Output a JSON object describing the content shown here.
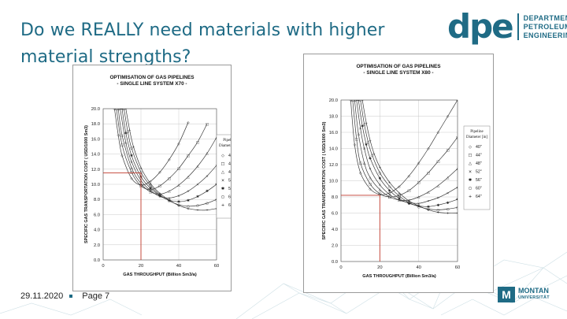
{
  "slide": {
    "title": "Do we REALLY need materials with higher material strengths?",
    "date": "29.11.2020",
    "page": "Page 7"
  },
  "logo": {
    "mark": "dpe",
    "line1": "DEPARTMENT",
    "line2": "PETROLEUM",
    "line3": "ENGINEERING"
  },
  "university_logo": {
    "mark": "M",
    "line1": "MONTAN",
    "line2": "UNIVERSITÄT"
  },
  "colors": {
    "brand": "#1f6b85",
    "grid": "#c9c9c9",
    "curve": "#3a3a3a",
    "marker_line": "#c0392b"
  },
  "chart_data": [
    {
      "type": "line",
      "title_line1": "OPTIMISATION OF GAS PIPELINES",
      "title_line2": "- SINGLE LINE SYSTEM X70 -",
      "xlabel": "GAS THROUGHPUT (Billion Sm3/a)",
      "ylabel": "SPECIFIC GAS TRANSPORTATION COST ( USD/1000 Sm3)",
      "xlim": [
        0,
        60
      ],
      "ylim": [
        0,
        20
      ],
      "xticks": [
        "0",
        "20",
        "40",
        "60"
      ],
      "yticks": [
        "0.0",
        "2.0",
        "4.0",
        "6.0",
        "8.0",
        "10.0",
        "12.0",
        "14.0",
        "16.0",
        "18.0",
        "20.0"
      ],
      "grid": true,
      "legend_title": "Pipeline Diameter [in]",
      "legend_placement": "right",
      "reference": {
        "x": 20,
        "y": 11.5
      },
      "series": [
        {
          "name": "40\"",
          "marker": "◇",
          "x": [
            6,
            8,
            10,
            15,
            20,
            25,
            30,
            35,
            40,
            45
          ],
          "values": [
            20,
            16.5,
            13.8,
            10.8,
            9.9,
            10.4,
            11.6,
            13.3,
            15.4,
            18.2
          ]
        },
        {
          "name": "44\"",
          "marker": "□",
          "x": [
            7,
            10,
            15,
            20,
            25,
            30,
            35,
            40,
            45,
            50,
            55
          ],
          "values": [
            20,
            15.2,
            11.6,
            9.8,
            9.3,
            9.8,
            10.8,
            12.1,
            13.8,
            15.6,
            18.0
          ]
        },
        {
          "name": "48\"",
          "marker": "△",
          "x": [
            8,
            10,
            15,
            20,
            25,
            30,
            35,
            40,
            45,
            50,
            55,
            60
          ],
          "values": [
            20,
            16.5,
            12.2,
            10.1,
            9.0,
            8.7,
            9.1,
            9.9,
            11.0,
            12.4,
            14.1,
            16.2
          ]
        },
        {
          "name": "52\"",
          "marker": "×",
          "x": [
            9,
            12,
            15,
            20,
            25,
            30,
            35,
            40,
            45,
            50,
            55,
            60
          ],
          "values": [
            20,
            15.5,
            13.0,
            10.5,
            9.2,
            8.4,
            8.2,
            8.5,
            9.1,
            10.0,
            11.1,
            12.5
          ]
        },
        {
          "name": "56\"",
          "marker": "✱",
          "x": [
            10,
            12,
            15,
            20,
            25,
            30,
            35,
            40,
            45,
            50,
            55,
            60
          ],
          "values": [
            20,
            16.8,
            13.8,
            11.0,
            9.5,
            8.5,
            7.9,
            7.7,
            7.9,
            8.4,
            9.1,
            10.0
          ]
        },
        {
          "name": "60\"",
          "marker": "○",
          "x": [
            11,
            13,
            15,
            20,
            25,
            30,
            35,
            40,
            45,
            50,
            55,
            60
          ],
          "values": [
            20,
            17.0,
            14.8,
            11.6,
            9.8,
            8.6,
            7.8,
            7.3,
            7.1,
            7.2,
            7.5,
            8.0
          ]
        },
        {
          "name": "64\"",
          "marker": "+",
          "x": [
            12,
            14,
            16,
            20,
            25,
            30,
            35,
            40,
            45,
            50,
            55,
            60
          ],
          "values": [
            20,
            17.2,
            15.0,
            12.2,
            10.1,
            8.8,
            7.9,
            7.2,
            6.8,
            6.6,
            6.6,
            6.8
          ]
        }
      ]
    },
    {
      "type": "line",
      "title_line1": "OPTIMISATION OF GAS PIPELINES",
      "title_line2": "- SINGLE LINE SYSTEM X80 -",
      "xlabel": "GAS THROUGHPUT (Billion Sm3/a)",
      "ylabel": "SPECIFIC GAS TRANSPORTATION COST ( USD/1000 Sm3)",
      "xlim": [
        0,
        60
      ],
      "ylim": [
        0,
        20
      ],
      "xticks": [
        "0",
        "20",
        "40",
        "60"
      ],
      "yticks": [
        "0.0",
        "2.0",
        "4.0",
        "6.0",
        "8.0",
        "10.0",
        "12.0",
        "14.0",
        "16.0",
        "18.0",
        "20.0"
      ],
      "grid": true,
      "legend_title": "Pipeline Diameter [in]",
      "legend_placement": "right",
      "reference": {
        "x": 20,
        "y": 8.2
      },
      "series": [
        {
          "name": "40\"",
          "marker": "◇",
          "x": [
            5,
            7,
            10,
            15,
            20,
            25,
            30,
            35,
            40,
            45,
            50,
            55,
            60
          ],
          "values": [
            20,
            14.5,
            11.0,
            9.0,
            8.3,
            8.5,
            9.3,
            10.6,
            12.2,
            14.0,
            16.0,
            18.0,
            20
          ]
        },
        {
          "name": "44\"",
          "marker": "□",
          "x": [
            6,
            8,
            10,
            15,
            20,
            25,
            30,
            35,
            40,
            45,
            50,
            55,
            60
          ],
          "values": [
            20,
            15.2,
            12.2,
            9.6,
            8.4,
            8.0,
            8.2,
            8.8,
            9.8,
            11.0,
            12.4,
            13.8,
            15.4
          ]
        },
        {
          "name": "48\"",
          "marker": "△",
          "x": [
            7,
            9,
            12,
            15,
            20,
            25,
            30,
            35,
            40,
            45,
            50,
            55,
            60
          ],
          "values": [
            20,
            15.8,
            12.2,
            10.4,
            8.9,
            8.0,
            7.6,
            7.6,
            8.0,
            8.6,
            9.4,
            10.4,
            11.5
          ]
        },
        {
          "name": "52\"",
          "marker": "×",
          "x": [
            8,
            10,
            12,
            15,
            20,
            25,
            30,
            35,
            40,
            45,
            50,
            55,
            60
          ],
          "values": [
            20,
            16.5,
            14.0,
            11.5,
            9.5,
            8.3,
            7.6,
            7.3,
            7.2,
            7.5,
            7.9,
            8.5,
            9.2
          ]
        },
        {
          "name": "56\"",
          "marker": "✱",
          "x": [
            9,
            11,
            13,
            15,
            20,
            25,
            30,
            35,
            40,
            45,
            50,
            55,
            60
          ],
          "values": [
            20,
            16.8,
            14.5,
            12.8,
            10.3,
            8.8,
            7.8,
            7.2,
            6.9,
            6.8,
            7.0,
            7.3,
            7.7
          ]
        },
        {
          "name": "60\"",
          "marker": "○",
          "x": [
            10,
            12,
            14,
            16,
            20,
            25,
            30,
            35,
            40,
            45,
            50,
            55,
            60
          ],
          "values": [
            20,
            17.0,
            14.8,
            13.2,
            11.0,
            9.3,
            8.1,
            7.3,
            6.8,
            6.5,
            6.4,
            6.5,
            6.7
          ]
        },
        {
          "name": "64\"",
          "marker": "+",
          "x": [
            11,
            13,
            15,
            17,
            20,
            25,
            30,
            35,
            40,
            45,
            50,
            55,
            60
          ],
          "values": [
            20,
            17.2,
            15.0,
            13.4,
            11.7,
            9.8,
            8.5,
            7.5,
            6.9,
            6.4,
            6.1,
            6.0,
            6.0
          ]
        }
      ]
    }
  ]
}
